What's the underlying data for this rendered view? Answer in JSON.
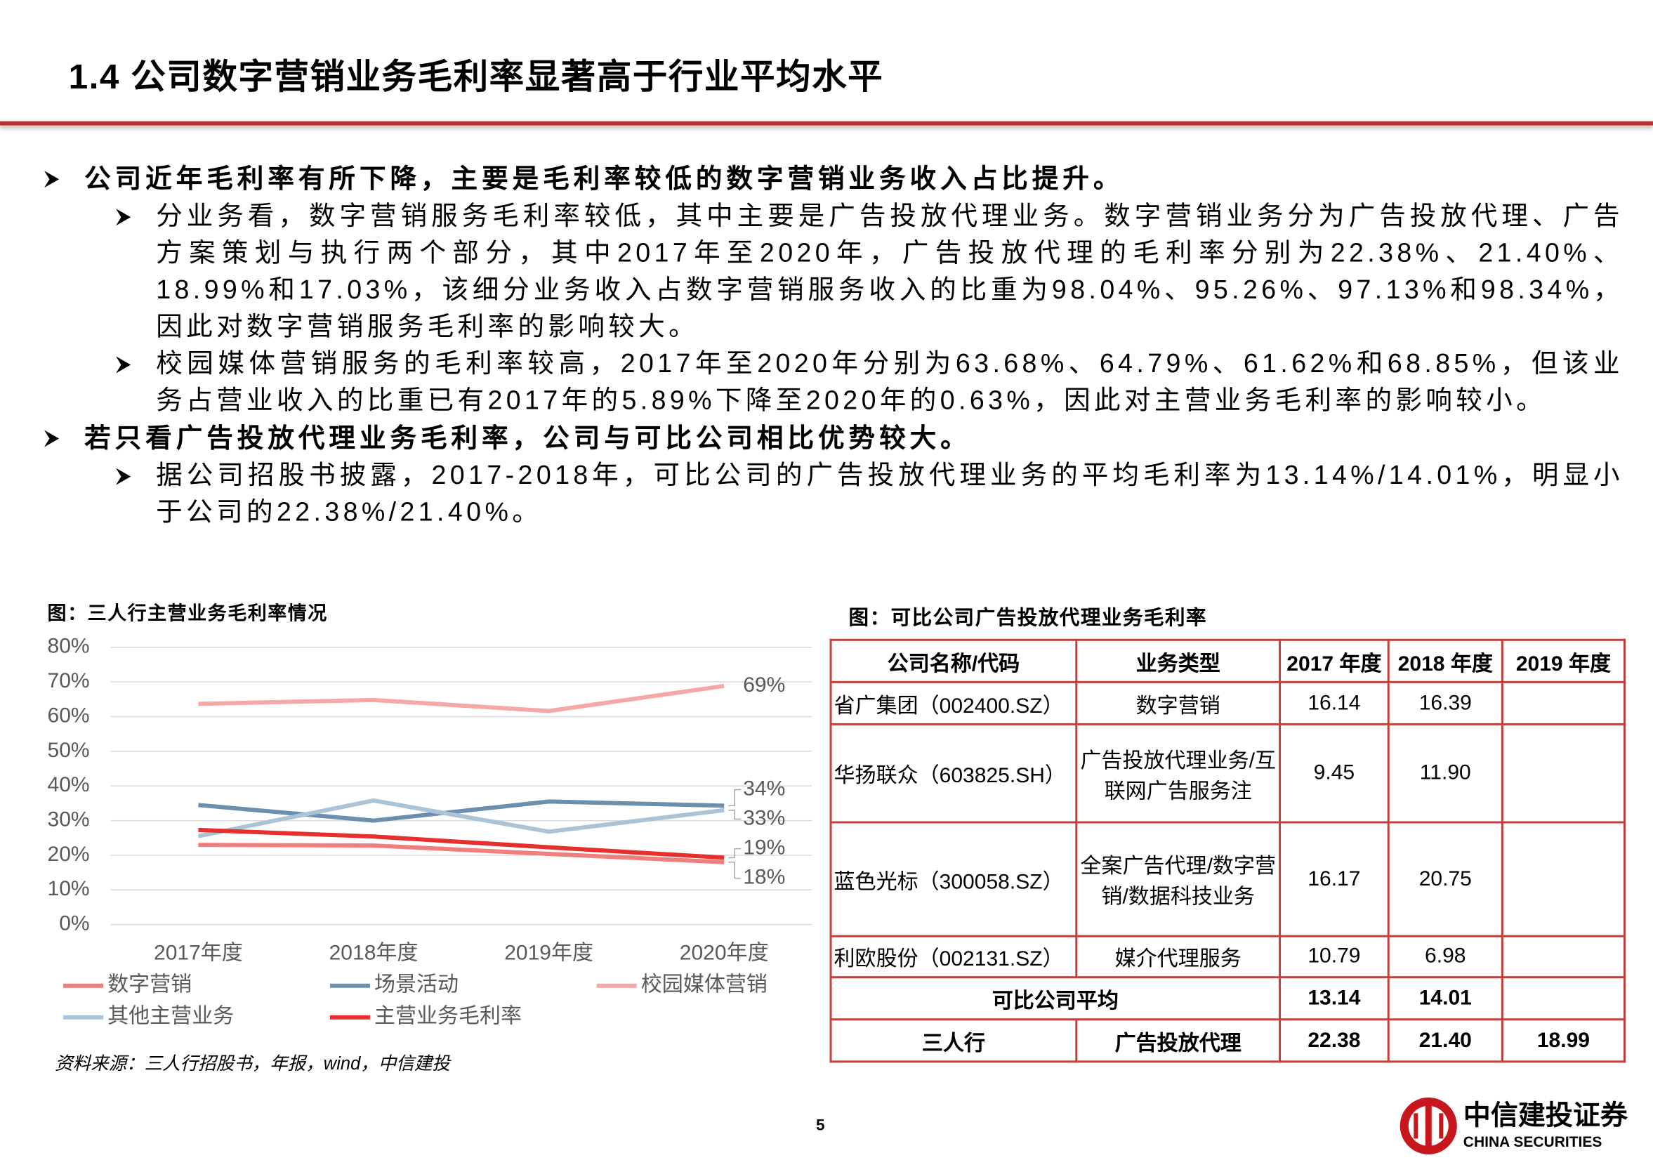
{
  "header": {
    "title": "1.4 公司数字营销业务毛利率显著高于行业平均水平"
  },
  "bullets": [
    {
      "text": "公司近年毛利率有所下降，主要是毛利率较低的数字营销业务收入占比提升。",
      "items": [
        "分业务看，数字营销服务毛利率较低，其中主要是广告投放代理业务。数字营销业务分为广告投放代理、广告方案策划与执行两个部分，其中2017年至2020年，广告投放代理的毛利率分别为22.38%、21.40%、18.99%和17.03%，该细分业务收入占数字营销服务收入的比重为98.04%、95.26%、97.13%和98.34%，因此对数字营销服务毛利率的影响较大。",
        "校园媒体营销服务的毛利率较高，2017年至2020年分别为63.68%、64.79%、61.62%和68.85%，但该业务占营业收入的比重已有2017年的5.89%下降至2020年的0.63%，因此对主营业务毛利率的影响较小。"
      ]
    },
    {
      "text": "若只看广告投放代理业务毛利率，公司与可比公司相比优势较大。",
      "items": [
        "据公司招股书披露，2017-2018年，可比公司的广告投放代理业务的平均毛利率为13.14%/14.01%，明显小于公司的22.38%/21.40%。"
      ]
    }
  ],
  "chart_data": {
    "type": "line",
    "title": "图：三人行主营业务毛利率情况",
    "categories": [
      "2017年度",
      "2018年度",
      "2019年度",
      "2020年度"
    ],
    "ylim": [
      0,
      80
    ],
    "yticks": [
      {
        "value": 0,
        "label": "0%"
      },
      {
        "value": 10,
        "label": "10%"
      },
      {
        "value": 20,
        "label": "20%"
      },
      {
        "value": 30,
        "label": "30%"
      },
      {
        "value": 40,
        "label": "40%"
      },
      {
        "value": 50,
        "label": "50%"
      },
      {
        "value": 60,
        "label": "60%"
      },
      {
        "value": 70,
        "label": "70%"
      },
      {
        "value": 80,
        "label": "80%"
      }
    ],
    "grid": true,
    "series": [
      {
        "name": "数字营销",
        "color": "#f07f7c",
        "values": [
          23.0,
          22.8,
          20.4,
          18.0
        ],
        "value_labels": [
          null,
          null,
          null,
          "18%"
        ]
      },
      {
        "name": "场景活动",
        "color": "#6b8fae",
        "values": [
          34.5,
          30.0,
          35.5,
          34.3
        ],
        "value_labels": [
          null,
          null,
          null,
          "34%"
        ]
      },
      {
        "name": "校园媒体营销",
        "color": "#f4a9a8",
        "values": [
          63.68,
          64.79,
          61.62,
          68.85
        ],
        "value_labels": [
          null,
          null,
          null,
          "69%"
        ]
      },
      {
        "name": "其他主营业务",
        "color": "#aac3d7",
        "values": [
          25.5,
          35.8,
          26.8,
          33.0
        ],
        "value_labels": [
          null,
          null,
          null,
          "33%"
        ]
      },
      {
        "name": "主营业务毛利率",
        "color": "#e6302d",
        "values": [
          27.3,
          25.4,
          22.3,
          19.3
        ],
        "value_labels": [
          null,
          null,
          null,
          "19%"
        ]
      }
    ],
    "source": "资料来源：三人行招股书，年报，wind，中信建投"
  },
  "table": {
    "title": "图：可比公司广告投放代理业务毛利率",
    "header": [
      "公司名称/代码",
      "业务类型",
      "2017 年度",
      "2018 年度",
      "2019 年度"
    ],
    "rows": [
      [
        "省广集团（002400.SZ）",
        "数字营销",
        "16.14",
        "16.39"
      ],
      [
        "华扬联众（603825.SH）",
        "广告投放代理业务/互联网广告服务注",
        "9.45",
        "11.90"
      ],
      [
        "蓝色光标（300058.SZ）",
        "全案广告代理/数字营销/数据科技业务",
        "16.17",
        "20.75"
      ],
      [
        "利欧股份（002131.SZ）",
        "媒介代理服务",
        "10.79",
        "6.98"
      ],
      [
        "可比公司平均",
        "13.14",
        "14.01"
      ],
      [
        "三人行",
        "广告投放代理",
        "22.38",
        "21.40",
        "18.99"
      ]
    ]
  },
  "footer": {
    "page": "5",
    "logo_cn": "中信建投证券",
    "logo_en": "CHINA SECURITIES"
  }
}
